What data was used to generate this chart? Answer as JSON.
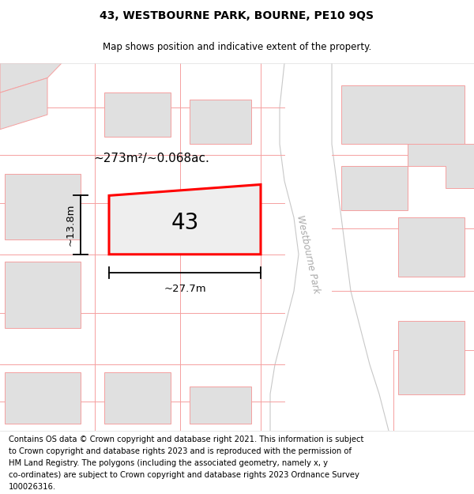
{
  "title_line1": "43, WESTBOURNE PARK, BOURNE, PE10 9QS",
  "title_line2": "Map shows position and indicative extent of the property.",
  "area_label": "~273m²/~0.068ac.",
  "width_label": "~27.7m",
  "height_label": "~13.8m",
  "plot_number": "43",
  "map_bg": "#ffffff",
  "building_fill": "#e0e0e0",
  "plot_fill": "#e8e8ee",
  "plot_outline_color": "#ff0000",
  "boundary_line_color": "#f5a0a0",
  "road_outline_color": "#c8c8c8",
  "road_fill": "#ffffff",
  "street_label": "Westbourne Park",
  "title_fontsize": 10,
  "subtitle_fontsize": 8.5,
  "footer_fontsize": 7.2,
  "footer_lines": [
    "Contains OS data © Crown copyright and database right 2021. This information is subject",
    "to Crown copyright and database rights 2023 and is reproduced with the permission of",
    "HM Land Registry. The polygons (including the associated geometry, namely x, y",
    "co-ordinates) are subject to Crown copyright and database rights 2023 Ordnance Survey",
    "100026316."
  ]
}
